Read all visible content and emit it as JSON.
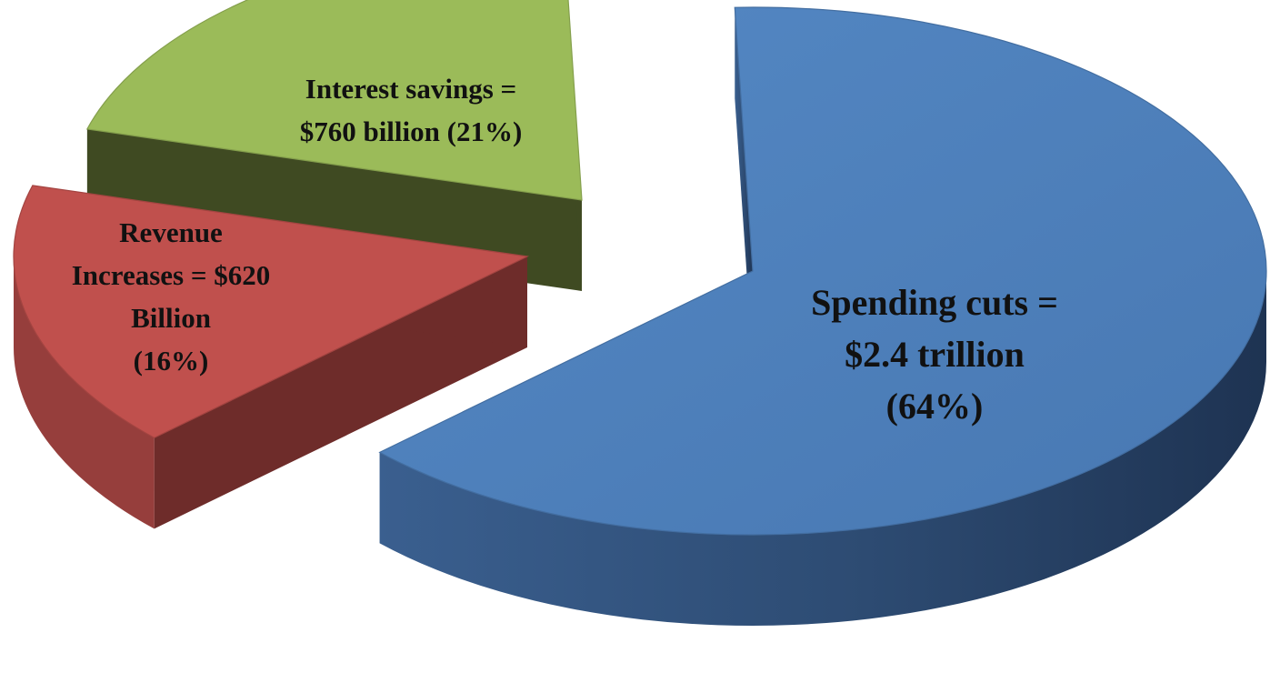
{
  "chart_data": {
    "type": "pie",
    "title": "",
    "style": "3d-exploded",
    "slices": [
      {
        "name": "Spending cuts",
        "value": 2400,
        "unit": "billion",
        "percent": 64,
        "color": "#4F81BD",
        "label_lines": [
          "Spending cuts =",
          "$2.4 trillion",
          "(64%)"
        ]
      },
      {
        "name": "Revenue Increases",
        "value": 620,
        "unit": "billion",
        "percent": 16,
        "color": "#C0504D",
        "label_lines": [
          "Revenue",
          "Increases = $620",
          "Billion",
          "(16%)"
        ]
      },
      {
        "name": "Interest savings",
        "value": 760,
        "unit": "billion",
        "percent": 21,
        "color": "#9BBB59",
        "label_lines": [
          "Interest savings =",
          "$760 billion (21%)"
        ]
      }
    ]
  }
}
